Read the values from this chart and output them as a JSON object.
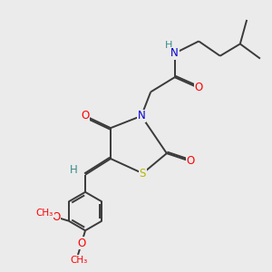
{
  "bg_color": "#ebebeb",
  "bond_color": "#3a3a3a",
  "bond_lw": 1.4,
  "dbo": 0.055,
  "atom_colors": {
    "O": "#ff0000",
    "N": "#0000cd",
    "S": "#b8b800",
    "H": "#3a8a8a",
    "C": "#3a3a3a"
  },
  "fs": 8.5
}
